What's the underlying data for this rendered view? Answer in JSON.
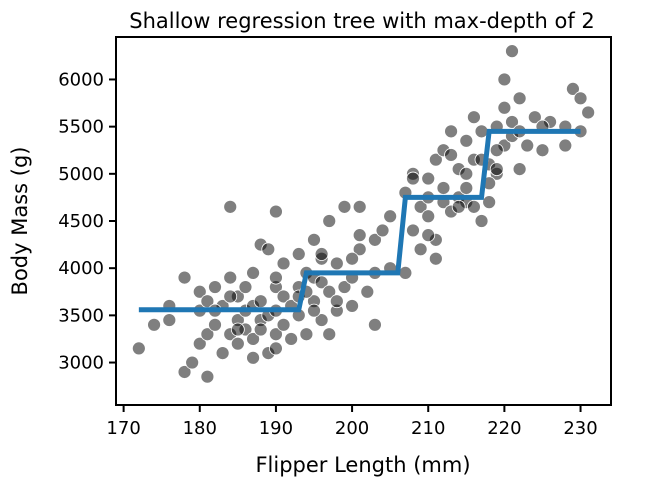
{
  "chart_data": {
    "type": "scatter",
    "title": "Shallow regression tree with max-depth of 2",
    "xlabel": "Flipper Length (mm)",
    "ylabel": "Body Mass (g)",
    "xlim": [
      169,
      234
    ],
    "ylim": [
      2550,
      6450
    ],
    "xticks": [
      170,
      180,
      190,
      200,
      210,
      220,
      230
    ],
    "yticks": [
      3000,
      3500,
      4000,
      4500,
      5000,
      5500,
      6000
    ],
    "grid": false,
    "legend": "none",
    "colors": {
      "points": "#000000",
      "line": "#1f77b4"
    },
    "points": {
      "x": [
        172,
        174,
        176,
        178,
        178,
        179,
        180,
        180,
        180,
        181,
        181,
        181,
        182,
        182,
        183,
        183,
        184,
        184,
        184,
        185,
        185,
        185,
        186,
        186,
        186,
        187,
        187,
        187,
        188,
        188,
        188,
        189,
        189,
        190,
        190,
        190,
        190,
        191,
        191,
        191,
        192,
        192,
        193,
        193,
        193,
        194,
        194,
        195,
        195,
        195,
        196,
        196,
        196,
        197,
        197,
        197,
        198,
        198,
        199,
        199,
        200,
        200,
        201,
        201,
        202,
        203,
        203,
        205,
        205,
        207,
        207,
        208,
        208,
        209,
        209,
        210,
        210,
        210,
        211,
        211,
        212,
        212,
        213,
        213,
        214,
        214,
        215,
        215,
        215,
        216,
        216,
        216,
        217,
        217,
        218,
        218,
        219,
        219,
        220,
        220,
        221,
        221,
        222,
        222,
        223,
        224,
        225,
        226,
        228,
        229,
        230,
        230,
        231,
        220,
        221,
        219,
        218,
        208,
        185,
        190,
        195,
        187,
        193,
        203,
        211,
        214,
        222,
        217,
        176,
        182,
        190,
        200,
        210,
        215,
        188,
        194,
        198,
        204,
        212,
        225,
        184,
        189,
        196,
        201,
        213,
        219,
        228
      ],
      "y": [
        3150,
        3400,
        3450,
        3900,
        2900,
        3000,
        3550,
        3200,
        3750,
        3300,
        3650,
        2850,
        3400,
        3800,
        3100,
        3600,
        3900,
        3300,
        4650,
        3450,
        3700,
        3200,
        3550,
        3350,
        3800,
        3600,
        3250,
        3950,
        3450,
        3650,
        4250,
        3500,
        3100,
        3550,
        3800,
        4600,
        3300,
        3400,
        3700,
        4050,
        3600,
        3250,
        3800,
        3500,
        4150,
        3950,
        3300,
        3650,
        3900,
        4300,
        3450,
        3850,
        4100,
        3750,
        4500,
        3300,
        3550,
        4050,
        3800,
        4650,
        3900,
        3600,
        4200,
        4650,
        3750,
        3400,
        4300,
        4000,
        4550,
        3950,
        4800,
        4400,
        5000,
        4650,
        4200,
        4550,
        4750,
        4950,
        4300,
        5150,
        4700,
        4850,
        4600,
        5450,
        4750,
        5050,
        4700,
        5000,
        5350,
        4650,
        5600,
        5150,
        4500,
        5450,
        4700,
        5100,
        5000,
        5500,
        6000,
        5300,
        5400,
        6300,
        5050,
        5800,
        5300,
        5600,
        5250,
        5550,
        5500,
        5900,
        5800,
        5450,
        5650,
        5700,
        5550,
        5050,
        4900,
        4950,
        3350,
        3150,
        3550,
        3050,
        3700,
        3950,
        4100,
        4650,
        5450,
        5150,
        3600,
        3550,
        3900,
        4100,
        4350,
        4850,
        3350,
        3750,
        3650,
        4400,
        5250,
        5500,
        3700,
        4200,
        4150,
        4350,
        5200,
        5250,
        5300
      ]
    },
    "tree_prediction": {
      "x": [
        172,
        193,
        194,
        206,
        207,
        217,
        218,
        230
      ],
      "y": [
        3560,
        3560,
        3950,
        3950,
        4750,
        4750,
        5450,
        5450
      ]
    }
  }
}
